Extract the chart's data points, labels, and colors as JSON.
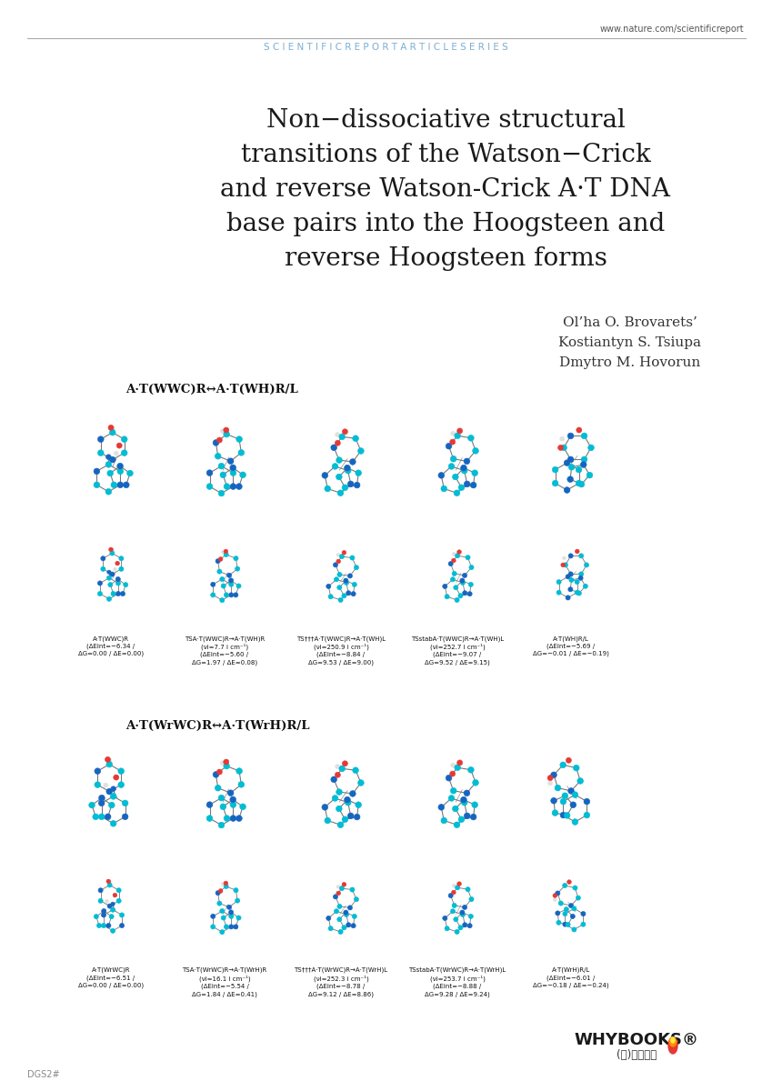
{
  "url_text": "www.nature.com/scientificreport",
  "header_text": "S C I E N T I F I C R E P O R T A R T I C L E S E R I E S",
  "title_lines": [
    "Non−dissociative structural",
    "transitions of the Watson−Crick",
    "and reverse Watson-Crick A·T DNA",
    "base pairs into the Hoogsteen and",
    "reverse Hoogsteen forms"
  ],
  "authors": [
    "Ol’ha O. Brovarets’",
    "Kostiantyn S. Tsiupa",
    "Dmytro M. Hovorun"
  ],
  "section1_label": "A·T(WWC)R↔A·T(WH)R/L",
  "section2_label": "A·T(WrWC)R↔A·T(WrH)R/L",
  "row1_captions": [
    "A·T(WWC)R\n(ΔEint=−6.34 /\nΔG=0.00 / ΔE=0.00)",
    "TSA·T(WWC)R→A·T(WH)R\n(νi=7.7 i cm⁻¹)\n(ΔEint=−5.60 /\nΔG=1.97 / ΔE=0.08)",
    "TS†††A·T(WWC)R→A·T(WH)L\n(νi=250.9 i cm⁻¹)\n(ΔEint=−8.84 /\nΔG=9.53 / ΔE=9.00)",
    "TSstabA·T(WWC)R→A·T(WH)L\n(νi=252.7 i cm⁻¹)\n(ΔEint=−9.07 /\nΔG=9.52 / ΔE=9.15)",
    "A·T(WH)R/L\n(ΔEint=−5.69 /\nΔG=−0.01 / ΔE=−0.19)"
  ],
  "row2_captions": [
    "A·T(WrWC)R\n(ΔEint=−6.51 /\nΔG=0.00 / ΔE=0.00)",
    "TSA·T(WrWC)R→A·T(WrH)R\n(νi=16.1 i cm⁻¹)\n(ΔEint=−5.54 /\nΔG=1.84 / ΔE=0.41)",
    "TS†††A·T(WrWC)R→A·T(WrH)L\n(νi=252.3 i cm⁻¹)\n(ΔEint=−8.78 /\nΔG=9.12 / ΔE=8.86)",
    "TSstabA·T(WrWC)R→A·T(WrH)L\n(νi=253.7 i cm⁻¹)\n(ΔEint=−8.88 /\nΔG=9.28 / ΔE=9.24)",
    "A·T(WrH)R/L\n(ΔEint=−6.01 /\nΔG=−0.18 / ΔE=−0.24)"
  ],
  "whybooks_text": "WHYBOOKS®",
  "whybooks_sub": "(주)와이북스",
  "background_color": "#ffffff",
  "header_color": "#7bafd4",
  "title_color": "#1a1a1a",
  "author_color": "#333333",
  "caption_color": "#111111",
  "section_label_color": "#111111",
  "url_color": "#555555",
  "line_color": "#aaaaaa",
  "molecule_colors": {
    "carbon": "#00bcd4",
    "nitrogen": "#1565c0",
    "oxygen": "#e53935",
    "hydrogen": "#e0e0e0",
    "bond": "#777777"
  }
}
